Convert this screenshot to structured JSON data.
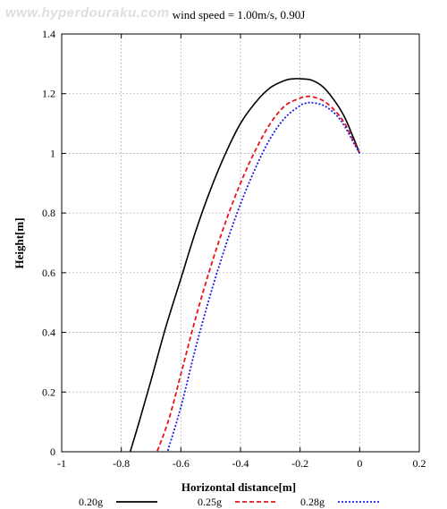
{
  "watermark": "www.hyperdouraku.com",
  "chart_data": {
    "type": "line",
    "title": "wind speed = 1.00m/s, 0.90J",
    "xlabel": "Horizontal distance[m]",
    "ylabel": "Height[m]",
    "xlim": [
      -1,
      0.2
    ],
    "ylim": [
      0,
      1.4
    ],
    "xticks": [
      -1,
      -0.8,
      -0.6,
      -0.4,
      -0.2,
      0,
      0.2
    ],
    "xtick_labels": [
      "-1",
      "-0.8",
      "-0.6",
      "-0.4",
      "-0.2",
      "0",
      "0.2"
    ],
    "yticks": [
      0,
      0.2,
      0.4,
      0.6,
      0.8,
      1,
      1.2,
      1.4
    ],
    "ytick_labels": [
      "0",
      "0.2",
      "0.4",
      "0.6",
      "0.8",
      "1",
      "1.2",
      "1.4"
    ],
    "grid": true,
    "legend_position": "bottom",
    "series": [
      {
        "name": "0.20g",
        "color": "#000000",
        "dash": "solid",
        "x": [
          0,
          -0.02,
          -0.05,
          -0.08,
          -0.12,
          -0.16,
          -0.2,
          -0.22,
          -0.25,
          -0.3,
          -0.35,
          -0.4,
          -0.45,
          -0.5,
          -0.55,
          -0.6,
          -0.65,
          -0.7,
          -0.74,
          -0.77
        ],
        "y": [
          1.0,
          1.05,
          1.12,
          1.17,
          1.22,
          1.245,
          1.25,
          1.25,
          1.245,
          1.22,
          1.17,
          1.1,
          1.0,
          0.88,
          0.74,
          0.58,
          0.42,
          0.24,
          0.1,
          0.0
        ]
      },
      {
        "name": "0.25g",
        "color": "#e8141c",
        "dash": "dashed",
        "x": [
          0,
          -0.02,
          -0.05,
          -0.08,
          -0.12,
          -0.16,
          -0.18,
          -0.2,
          -0.25,
          -0.3,
          -0.35,
          -0.4,
          -0.45,
          -0.5,
          -0.55,
          -0.6,
          -0.64,
          -0.68
        ],
        "y": [
          1.0,
          1.04,
          1.1,
          1.14,
          1.175,
          1.19,
          1.19,
          1.185,
          1.16,
          1.1,
          1.01,
          0.9,
          0.77,
          0.62,
          0.45,
          0.26,
          0.11,
          0.0
        ]
      },
      {
        "name": "0.28g",
        "color": "#1a1aeb",
        "dash": "dotted",
        "x": [
          0,
          -0.02,
          -0.05,
          -0.08,
          -0.12,
          -0.16,
          -0.18,
          -0.2,
          -0.25,
          -0.3,
          -0.35,
          -0.4,
          -0.45,
          -0.5,
          -0.55,
          -0.6,
          -0.645
        ],
        "y": [
          1.0,
          1.035,
          1.09,
          1.13,
          1.16,
          1.17,
          1.168,
          1.16,
          1.12,
          1.05,
          0.95,
          0.83,
          0.69,
          0.53,
          0.35,
          0.15,
          0.0
        ]
      }
    ]
  }
}
